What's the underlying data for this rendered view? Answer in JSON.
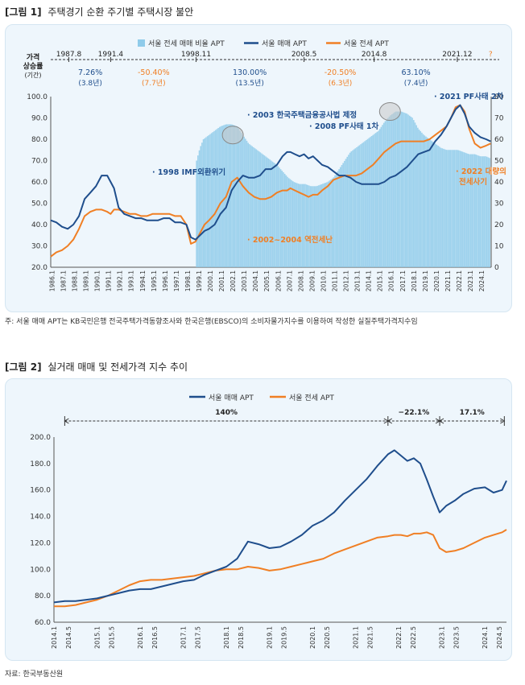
{
  "figure1": {
    "label": "[그림 1]",
    "title": "주택경기 순환 주기별 주택시장 불안",
    "note": "주: 서울 매매 APT는 KB국민은행 전국주택가격동향조사와 한국은행(EBSCO)의 소비자물가지수를 이용하여 작성한 실질주택가격지수임"
  },
  "figure2": {
    "label": "[그림 2]",
    "title": "실거래 매매 및 전세가격 지수 추이",
    "note": "자료: 한국부동산원"
  },
  "colors": {
    "sale": "#1f4e8c",
    "jeonse": "#f07f24",
    "ratio": "#8fcbea",
    "text_blue": "#1f4e8c",
    "text_orange": "#f07f24"
  },
  "chart_data": [
    {
      "type": "line",
      "legend": [
        "서울 전세 매매 비율 APT",
        "서울 매매  APT",
        "서울 전세 APT"
      ],
      "cycle_axis_label": [
        "가격",
        "상승률",
        "(기간)"
      ],
      "cycle_dates": [
        "1987.8",
        "1991.4",
        "1998.11",
        "2008.5",
        "2014.8",
        "2021.12",
        "?"
      ],
      "cycle_date_pos": [
        1987.6,
        1991.3,
        1998.85,
        2008.4,
        2014.6,
        2021.95,
        2024.9
      ],
      "cycles": [
        {
          "pct": "7.26%",
          "period": "(3.8년)",
          "color": "blue",
          "x": 1989.5
        },
        {
          "pct": "-50.40%",
          "period": "(7.7년)",
          "color": "orange",
          "x": 1995.1
        },
        {
          "pct": "130.00%",
          "period": "(13.5년)",
          "color": "blue",
          "x": 2003.6
        },
        {
          "pct": "-20.50%",
          "period": "(6.3년)",
          "color": "orange",
          "x": 2011.6
        },
        {
          "pct": "63.10%",
          "period": "(7.4년)",
          "color": "blue",
          "x": 2018.3
        }
      ],
      "annotations": [
        {
          "text": "· 2003 한국주택금융공사법 제정",
          "color": "blue"
        },
        {
          "text": "· 2008 PF사태 1차",
          "color": "blue"
        },
        {
          "text": "· 2021 PF사태 2차",
          "color": "blue"
        },
        {
          "text": "· 1998 IMF외환위기",
          "color": "blue"
        },
        {
          "text": "· 2022 대량의",
          "color": "orange"
        },
        {
          "text": "전세사기",
          "color": "orange"
        },
        {
          "text": "· 2002~2004 역전세난",
          "color": "orange"
        }
      ],
      "y_left": {
        "min": 20,
        "max": 100,
        "ticks": [
          "20.0",
          "30.0",
          "40.0",
          "50.0",
          "60.0",
          "70.0",
          "80.0",
          "90.0",
          "100.0"
        ]
      },
      "y_right": {
        "min": 0,
        "max": 80,
        "ticks": [
          "0",
          "10",
          "20",
          "30",
          "40",
          "50",
          "60",
          "70",
          "80"
        ]
      },
      "x_ticks": [
        "1986.1",
        "1987.1",
        "1988.1",
        "1989.1",
        "1990.1",
        "1991.1",
        "1992.1",
        "1993.1",
        "1994.1",
        "1995.1",
        "1996.1",
        "1997.1",
        "1998.1",
        "1999.1",
        "2000.1",
        "2001.1",
        "2002.1",
        "2003.1",
        "2004.1",
        "2005.1",
        "2006.1",
        "2007.1",
        "2008.1",
        "2009.1",
        "2010.1",
        "2011.1",
        "2012.1",
        "2013.1",
        "2014.1",
        "2015.1",
        "2016.1",
        "2017.1",
        "2018.1",
        "2019.1",
        "2020.1",
        "2021.1",
        "2022.1",
        "2023.1",
        "2024.1"
      ],
      "x_range": [
        1986.0,
        2024.95
      ],
      "series": [
        {
          "name": "서울 매매  APT",
          "axis": "left",
          "x": [
            1986.0,
            1986.5,
            1987.0,
            1987.5,
            1988.0,
            1988.5,
            1989.0,
            1989.5,
            1990.0,
            1990.5,
            1991.0,
            1991.3,
            1991.6,
            1992.0,
            1992.5,
            1993.0,
            1993.5,
            1994.0,
            1994.5,
            1995.0,
            1995.5,
            1996.0,
            1996.5,
            1997.0,
            1997.5,
            1998.0,
            1998.4,
            1998.8,
            1999.2,
            1999.6,
            2000.0,
            2000.5,
            2001.0,
            2001.5,
            2002.0,
            2002.5,
            2003.0,
            2003.5,
            2004.0,
            2004.5,
            2005.0,
            2005.5,
            2006.0,
            2006.5,
            2006.9,
            2007.2,
            2007.6,
            2008.0,
            2008.4,
            2008.8,
            2009.2,
            2009.6,
            2010.0,
            2010.5,
            2011.0,
            2011.5,
            2012.0,
            2012.5,
            2013.0,
            2013.5,
            2014.0,
            2014.5,
            2015.0,
            2015.5,
            2016.0,
            2016.5,
            2017.0,
            2017.5,
            2018.0,
            2018.5,
            2019.0,
            2019.5,
            2020.0,
            2020.5,
            2021.0,
            2021.4,
            2021.8,
            2022.2,
            2022.6,
            2023.0,
            2023.5,
            2024.0,
            2024.5,
            2024.9
          ],
          "values": [
            42,
            41,
            39,
            38,
            40,
            44,
            52,
            55,
            58,
            63,
            63,
            60,
            57,
            48,
            45,
            44,
            43,
            43,
            42,
            42,
            42,
            43,
            43,
            41,
            41,
            40,
            34,
            33,
            35,
            37,
            38,
            40,
            45,
            48,
            56,
            60,
            63,
            62,
            62,
            63,
            66,
            66,
            68,
            72,
            74,
            74,
            73,
            72,
            73,
            71,
            72,
            70,
            68,
            67,
            65,
            63,
            63,
            62,
            60,
            59,
            59,
            59,
            59,
            60,
            62,
            63,
            65,
            67,
            70,
            73,
            74,
            75,
            79,
            82,
            86,
            90,
            94,
            96,
            92,
            86,
            83,
            81,
            80,
            79
          ]
        },
        {
          "name": "서울 전세 APT",
          "axis": "left",
          "x": [
            1986.0,
            1986.5,
            1987.0,
            1987.5,
            1988.0,
            1988.5,
            1989.0,
            1989.5,
            1990.0,
            1990.5,
            1991.0,
            1991.3,
            1991.6,
            1992.0,
            1992.5,
            1993.0,
            1993.5,
            1994.0,
            1994.5,
            1995.0,
            1995.5,
            1996.0,
            1996.5,
            1997.0,
            1997.5,
            1998.0,
            1998.4,
            1998.8,
            1999.2,
            1999.6,
            2000.0,
            2000.5,
            2001.0,
            2001.5,
            2002.0,
            2002.5,
            2003.0,
            2003.5,
            2004.0,
            2004.5,
            2005.0,
            2005.5,
            2006.0,
            2006.5,
            2006.9,
            2007.2,
            2007.6,
            2008.0,
            2008.4,
            2008.8,
            2009.2,
            2009.6,
            2010.0,
            2010.5,
            2011.0,
            2011.5,
            2012.0,
            2012.5,
            2013.0,
            2013.5,
            2014.0,
            2014.5,
            2015.0,
            2015.5,
            2016.0,
            2016.5,
            2017.0,
            2017.5,
            2018.0,
            2018.5,
            2019.0,
            2019.5,
            2020.0,
            2020.5,
            2021.0,
            2021.4,
            2021.8,
            2022.2,
            2022.6,
            2023.0,
            2023.5,
            2024.0,
            2024.5,
            2024.9
          ],
          "values": [
            25,
            27,
            28,
            30,
            33,
            38,
            44,
            46,
            47,
            47,
            46,
            45,
            47,
            47,
            46,
            45,
            45,
            44,
            44,
            45,
            45,
            45,
            45,
            44,
            44,
            40,
            31,
            32,
            36,
            40,
            42,
            45,
            50,
            53,
            60,
            62,
            58,
            55,
            53,
            52,
            52,
            53,
            55,
            56,
            56,
            57,
            56,
            55,
            54,
            53,
            54,
            54,
            56,
            58,
            61,
            62,
            63,
            63,
            63,
            64,
            66,
            68,
            71,
            74,
            76,
            78,
            79,
            79,
            79,
            79,
            79,
            80,
            82,
            84,
            86,
            90,
            95,
            96,
            93,
            85,
            78,
            76,
            77,
            78
          ]
        },
        {
          "name": "서울 전세 매매 비율 APT",
          "axis": "right",
          "x": [
            1998.9,
            1999.2,
            1999.5,
            2000.0,
            2000.5,
            2001.0,
            2001.5,
            2002.0,
            2002.5,
            2003.0,
            2003.5,
            2004.0,
            2004.5,
            2005.0,
            2005.5,
            2006.0,
            2006.5,
            2007.0,
            2007.5,
            2008.0,
            2008.5,
            2009.0,
            2009.5,
            2010.0,
            2010.5,
            2011.0,
            2011.5,
            2012.0,
            2012.5,
            2013.0,
            2013.5,
            2014.0,
            2014.5,
            2015.0,
            2015.5,
            2016.0,
            2016.5,
            2017.0,
            2017.5,
            2018.0,
            2018.5,
            2019.0,
            2019.5,
            2020.0,
            2020.5,
            2021.0,
            2021.5,
            2022.0,
            2022.5,
            2023.0,
            2023.5,
            2024.0,
            2024.5,
            2024.9
          ],
          "values": [
            50,
            56,
            60,
            62,
            64,
            66,
            67,
            67,
            66,
            62,
            58,
            56,
            54,
            52,
            50,
            48,
            45,
            42,
            40,
            39,
            39,
            38,
            38,
            39,
            40,
            42,
            46,
            50,
            54,
            56,
            58,
            60,
            62,
            64,
            68,
            71,
            73,
            73,
            72,
            70,
            65,
            62,
            60,
            58,
            56,
            55,
            55,
            55,
            54,
            53,
            53,
            52,
            52,
            51
          ]
        }
      ]
    },
    {
      "type": "line",
      "legend": [
        "서울 매매  APT",
        "서울 전세 APT"
      ],
      "periods": [
        {
          "label": "140%",
          "from": 2014.25,
          "to": 2021.75
        },
        {
          "label": "−22.1%",
          "from": 2021.75,
          "to": 2022.95
        },
        {
          "label": "17.1%",
          "from": 2022.95,
          "to": 2024.45
        }
      ],
      "y": {
        "min": 60,
        "max": 200,
        "ticks": [
          "60.0",
          "80.0",
          "100.0",
          "120.0",
          "140.0",
          "160.0",
          "180.0",
          "200.0"
        ]
      },
      "x_ticks": [
        "2014.1",
        "2014.5",
        "2015.1",
        "2015.5",
        "2016.1",
        "2016.5",
        "2017.1",
        "2017.5",
        "2018.1",
        "2018.5",
        "2019.1",
        "2019.5",
        "2020.1",
        "2020.5",
        "2021.1",
        "2021.5",
        "2022.1",
        "2022.5",
        "2023.1",
        "2023.5",
        "2024.1",
        "2024.5"
      ],
      "x_range": [
        2014.0,
        2024.5
      ],
      "series": [
        {
          "name": "서울 매매  APT",
          "x": [
            2014.0,
            2014.25,
            2014.5,
            2014.75,
            2015.0,
            2015.25,
            2015.5,
            2015.75,
            2016.0,
            2016.25,
            2016.5,
            2016.75,
            2017.0,
            2017.25,
            2017.5,
            2017.75,
            2018.0,
            2018.25,
            2018.5,
            2018.75,
            2019.0,
            2019.25,
            2019.5,
            2019.75,
            2020.0,
            2020.25,
            2020.5,
            2020.75,
            2021.0,
            2021.25,
            2021.5,
            2021.75,
            2021.9,
            2022.05,
            2022.2,
            2022.35,
            2022.5,
            2022.65,
            2022.8,
            2022.95,
            2023.1,
            2023.3,
            2023.5,
            2023.75,
            2024.0,
            2024.2,
            2024.4,
            2024.5
          ],
          "values": [
            75,
            76,
            76,
            77,
            78,
            80,
            82,
            84,
            85,
            85,
            87,
            89,
            91,
            92,
            96,
            99,
            102,
            108,
            121,
            119,
            116,
            117,
            121,
            126,
            133,
            137,
            143,
            152,
            160,
            168,
            178,
            187,
            190,
            186,
            182,
            184,
            180,
            168,
            155,
            143,
            148,
            152,
            157,
            161,
            162,
            158,
            160,
            167
          ]
        },
        {
          "name": "서울 전세 APT",
          "x": [
            2014.0,
            2014.25,
            2014.5,
            2014.75,
            2015.0,
            2015.25,
            2015.5,
            2015.75,
            2016.0,
            2016.25,
            2016.5,
            2016.75,
            2017.0,
            2017.25,
            2017.5,
            2017.75,
            2018.0,
            2018.25,
            2018.5,
            2018.75,
            2019.0,
            2019.25,
            2019.5,
            2019.75,
            2020.0,
            2020.25,
            2020.5,
            2020.75,
            2021.0,
            2021.25,
            2021.5,
            2021.75,
            2021.9,
            2022.05,
            2022.2,
            2022.35,
            2022.5,
            2022.65,
            2022.8,
            2022.95,
            2023.1,
            2023.3,
            2023.5,
            2023.75,
            2024.0,
            2024.2,
            2024.4,
            2024.5
          ],
          "values": [
            72,
            72,
            73,
            75,
            77,
            80,
            84,
            88,
            91,
            92,
            92,
            93,
            94,
            95,
            97,
            99,
            100,
            100,
            102,
            101,
            99,
            100,
            102,
            104,
            106,
            108,
            112,
            115,
            118,
            121,
            124,
            125,
            126,
            126,
            125,
            127,
            127,
            128,
            126,
            116,
            113,
            114,
            116,
            120,
            124,
            126,
            128,
            130
          ]
        }
      ]
    }
  ]
}
